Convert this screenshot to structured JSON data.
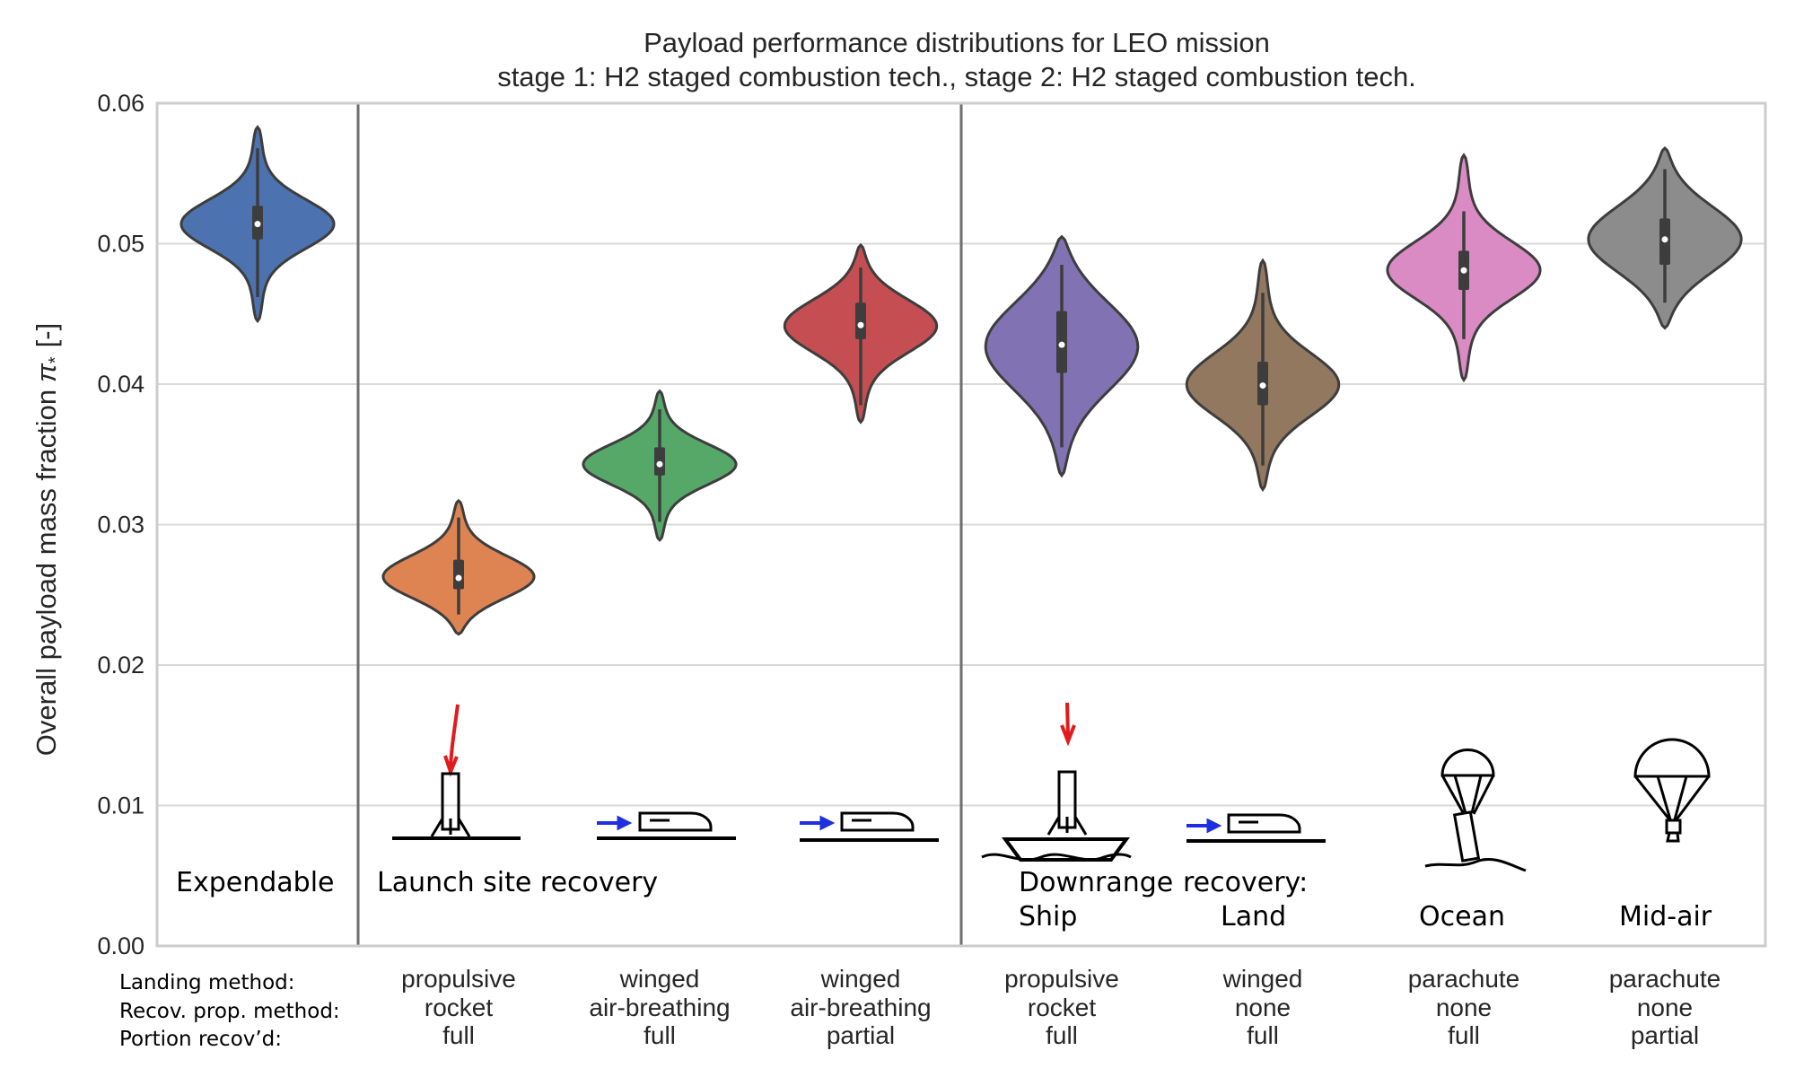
{
  "chart_data": {
    "type": "violin",
    "title": "Payload performance distributions for LEO mission",
    "subtitle": "stage 1: H2 staged combustion tech., stage 2: H2 staged combustion tech.",
    "ylabel_text": "Overall payload mass fraction",
    "ylabel_symbol": "π",
    "ylabel_subscript": "*",
    "ylabel_unit": "[-]",
    "ylim": [
      0,
      0.06
    ],
    "yticks": [
      "0.00",
      "0.01",
      "0.02",
      "0.03",
      "0.04",
      "0.05",
      "0.06"
    ],
    "grid": true,
    "row_labels": [
      "Landing method:",
      "Recov. prop. method:",
      "Portion recov’d:"
    ],
    "group_labels": [
      {
        "text": "Expendable"
      },
      {
        "text": "Launch site recovery"
      },
      {
        "text": "Downrange"
      },
      {
        "text": "recovery:"
      },
      {
        "text": "Ship"
      },
      {
        "text": "Land"
      },
      {
        "text": "Ocean"
      },
      {
        "text": "Mid-air"
      }
    ],
    "series": [
      {
        "landing": "",
        "propulsion": "",
        "portion": "",
        "color": "#4c72b0",
        "median": 0.0514,
        "q1": 0.0503,
        "q3": 0.0527,
        "whisker_low": 0.0462,
        "whisker_high": 0.0568,
        "min": 0.0445,
        "max": 0.0583
      },
      {
        "landing": "propulsive",
        "propulsion": "rocket",
        "portion": "full",
        "color": "#dd8452",
        "median": 0.0262,
        "q1": 0.0254,
        "q3": 0.0275,
        "whisker_low": 0.0236,
        "whisker_high": 0.0305,
        "min": 0.0222,
        "max": 0.0317
      },
      {
        "landing": "winged",
        "propulsion": "air-breathing",
        "portion": "full",
        "color": "#55a868",
        "median": 0.0343,
        "q1": 0.0335,
        "q3": 0.0355,
        "whisker_low": 0.0302,
        "whisker_high": 0.0382,
        "min": 0.0289,
        "max": 0.0395
      },
      {
        "landing": "winged",
        "propulsion": "air-breathing",
        "portion": "partial",
        "color": "#c44e52",
        "median": 0.0442,
        "q1": 0.0432,
        "q3": 0.0458,
        "whisker_low": 0.0385,
        "whisker_high": 0.0483,
        "min": 0.0373,
        "max": 0.0499
      },
      {
        "landing": "propulsive",
        "propulsion": "rocket",
        "portion": "full",
        "color": "#8172b3",
        "median": 0.0428,
        "q1": 0.0408,
        "q3": 0.0452,
        "whisker_low": 0.0355,
        "whisker_high": 0.0485,
        "min": 0.0335,
        "max": 0.0505
      },
      {
        "landing": "winged",
        "propulsion": "none",
        "portion": "full",
        "color": "#937860",
        "median": 0.0399,
        "q1": 0.0385,
        "q3": 0.0416,
        "whisker_low": 0.0342,
        "whisker_high": 0.0465,
        "min": 0.0325,
        "max": 0.0488
      },
      {
        "landing": "parachute",
        "propulsion": "none",
        "portion": "full",
        "color": "#da8bc3",
        "median": 0.0481,
        "q1": 0.0467,
        "q3": 0.0495,
        "whisker_low": 0.0432,
        "whisker_high": 0.0523,
        "min": 0.0403,
        "max": 0.0563
      },
      {
        "landing": "parachute",
        "propulsion": "none",
        "portion": "partial",
        "color": "#8c8c8c",
        "median": 0.0503,
        "q1": 0.0485,
        "q3": 0.0518,
        "whisker_low": 0.0458,
        "whisker_high": 0.0553,
        "min": 0.044,
        "max": 0.0568
      }
    ],
    "pictogram_icons": [
      "expendable-none",
      "propulsive-landing-icon",
      "winged-airbreathing-icon",
      "winged-airbreathing-icon",
      "ship-landing-icon",
      "winged-land-icon",
      "parachute-ocean-icon",
      "parachute-midair-icon"
    ],
    "colors": {
      "axis_frame": "#cccccc",
      "grid": "#d9d9d9",
      "divider": "#6e6e6e",
      "violin_edge": "#3d3d3d",
      "arrow_red": "#e31a1c",
      "arrow_blue": "#1f2fe0"
    }
  }
}
